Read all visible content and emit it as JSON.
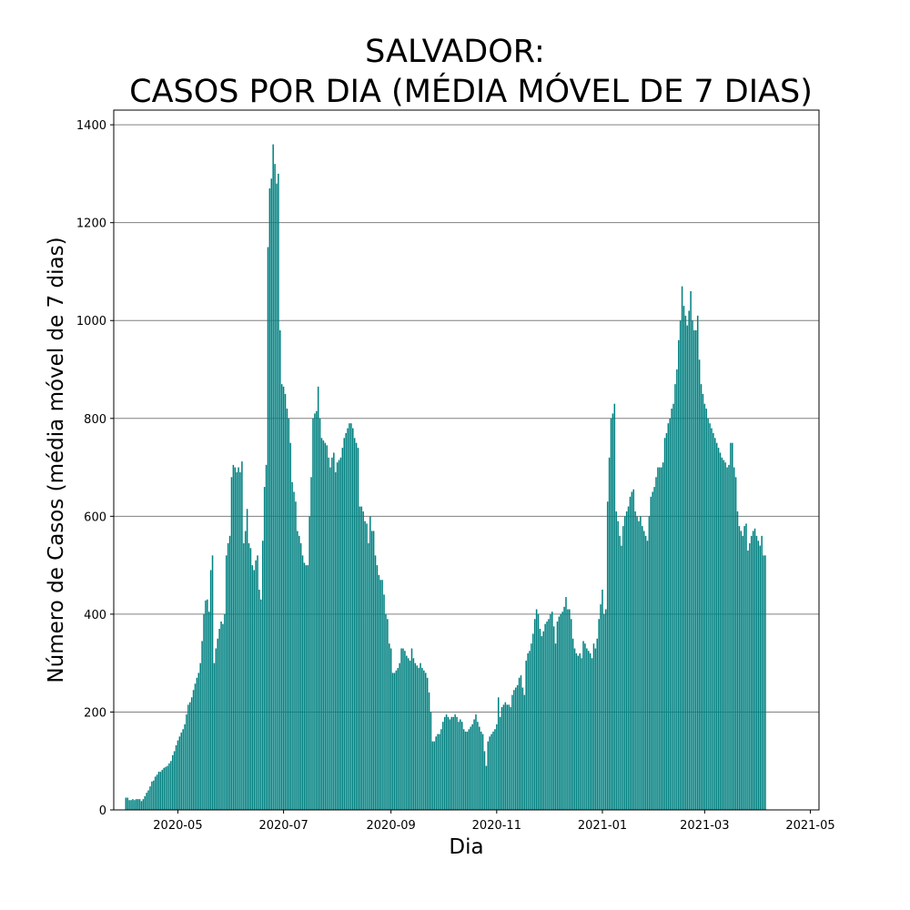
{
  "chart_data": {
    "type": "bar",
    "title_line1": "SALVADOR:",
    "title_line2": "CASOS POR DIA (MÉDIA MÓVEL DE 7 DIAS)",
    "xlabel": "Dia",
    "ylabel": "Número de Casos (média móvel de 7 dias)",
    "bar_color": "#008080",
    "grid_color": "#808080",
    "grid": "horizontal",
    "ylim": [
      0,
      1430
    ],
    "xlim": [
      "2020-03-25",
      "2021-05-06"
    ],
    "yticks": [
      0,
      200,
      400,
      600,
      800,
      1000,
      1200,
      1400
    ],
    "xticks": [
      "2020-05",
      "2020-07",
      "2020-09",
      "2020-11",
      "2021-01",
      "2021-03",
      "2021-05"
    ],
    "xtick_dates": [
      "2020-05-01",
      "2020-07-01",
      "2020-09-01",
      "2020-11-01",
      "2021-01-01",
      "2021-03-01",
      "2021-05-01"
    ],
    "series": [
      {
        "start_date": "2020-04-01",
        "values": [
          25,
          25,
          20,
          20,
          22,
          20,
          22,
          22,
          22,
          18,
          22,
          28,
          35,
          40,
          48,
          58,
          60,
          68,
          72,
          78,
          78,
          82,
          86,
          88,
          90,
          95,
          100,
          112,
          120,
          132,
          142,
          150,
          158,
          165,
          175,
          195,
          215,
          220,
          230,
          245,
          258,
          270,
          280,
          300,
          345,
          400,
          428,
          430,
          405,
          490,
          520,
          300,
          330,
          350,
          370,
          385,
          380,
          400,
          520,
          545,
          560,
          680,
          705,
          700,
          690,
          700,
          690,
          712,
          545,
          570,
          615,
          545,
          535,
          500,
          490,
          510,
          520,
          450,
          430,
          550,
          660,
          705,
          1150,
          1270,
          1290,
          1360,
          1320,
          1280,
          1300,
          980,
          870,
          865,
          850,
          820,
          800,
          750,
          670,
          650,
          630,
          570,
          560,
          545,
          520,
          505,
          500,
          500,
          600,
          680,
          800,
          810,
          815,
          865,
          800,
          760,
          755,
          750,
          745,
          720,
          700,
          720,
          730,
          690,
          710,
          715,
          720,
          740,
          760,
          770,
          780,
          790,
          790,
          780,
          760,
          750,
          740,
          620,
          620,
          610,
          590,
          585,
          545,
          600,
          570,
          570,
          520,
          500,
          480,
          470,
          470,
          440,
          400,
          390,
          340,
          330,
          280,
          280,
          285,
          290,
          300,
          330,
          330,
          325,
          315,
          310,
          305,
          330,
          310,
          300,
          295,
          290,
          300,
          290,
          285,
          280,
          270,
          240,
          200,
          140,
          140,
          150,
          155,
          155,
          165,
          180,
          190,
          195,
          190,
          185,
          190,
          190,
          195,
          190,
          180,
          185,
          180,
          165,
          160,
          160,
          165,
          170,
          175,
          185,
          195,
          180,
          170,
          160,
          155,
          120,
          90,
          140,
          150,
          155,
          160,
          165,
          175,
          230,
          190,
          210,
          215,
          220,
          215,
          215,
          210,
          235,
          245,
          250,
          255,
          270,
          275,
          250,
          235,
          305,
          320,
          325,
          340,
          360,
          390,
          410,
          400,
          370,
          355,
          365,
          380,
          385,
          390,
          400,
          405,
          375,
          340,
          385,
          395,
          400,
          405,
          415,
          435,
          410,
          410,
          390,
          350,
          330,
          320,
          315,
          320,
          310,
          345,
          340,
          330,
          325,
          320,
          310,
          340,
          330,
          350,
          390,
          420,
          450,
          400,
          410,
          630,
          720,
          800,
          810,
          830,
          610,
          590,
          560,
          540,
          580,
          600,
          610,
          620,
          640,
          650,
          655,
          610,
          600,
          590,
          600,
          580,
          570,
          560,
          550,
          600,
          640,
          650,
          660,
          680,
          700,
          700,
          700,
          710,
          760,
          770,
          790,
          800,
          820,
          830,
          870,
          900,
          960,
          1000,
          1070,
          1030,
          1010,
          990,
          1020,
          1060,
          1000,
          980,
          980,
          1010,
          920,
          870,
          850,
          830,
          820,
          800,
          790,
          780,
          770,
          760,
          750,
          740,
          730,
          720,
          715,
          710,
          700,
          705,
          750,
          750,
          700,
          680,
          610,
          580,
          570,
          560,
          580,
          585,
          530,
          545,
          560,
          570,
          575,
          560,
          550,
          540,
          560,
          520,
          520
        ]
      }
    ]
  }
}
